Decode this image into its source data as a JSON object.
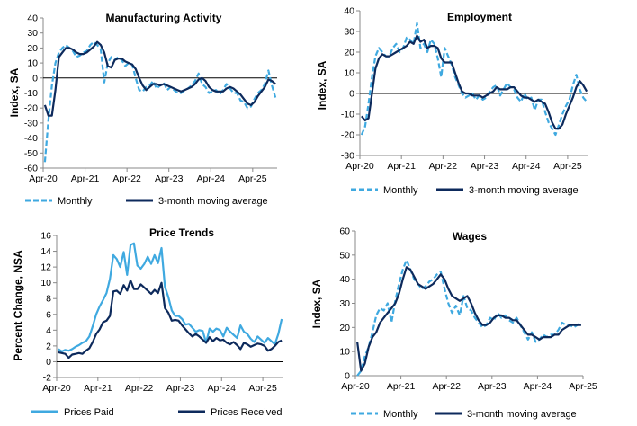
{
  "colors": {
    "light": "#3fa9e0",
    "dark": "#0d2a5c"
  },
  "chart_data": [
    {
      "type": "line",
      "title": "Manufacturing Activity",
      "ylabel": "Index, SA",
      "ylim": [
        -60,
        40
      ],
      "yticks": [
        -60,
        -50,
        -40,
        -30,
        -20,
        -10,
        0,
        10,
        20,
        30,
        40
      ],
      "xticks": [
        "Apr-20",
        "Apr-21",
        "Apr-22",
        "Apr-23",
        "Apr-24",
        "Apr-25"
      ],
      "zero_line": true,
      "series": [
        {
          "name": "Monthly",
          "style": "dashed",
          "color": "#3fa9e0",
          "values": [
            -56,
            -28,
            -5,
            10,
            17,
            20,
            22,
            20,
            18,
            14,
            15,
            17,
            18,
            22,
            24,
            22,
            19,
            -3,
            10,
            14,
            12,
            14,
            12,
            8,
            10,
            9,
            0,
            -8,
            -9,
            -6,
            -5,
            -2,
            -7,
            -5,
            -3,
            -8,
            -6,
            -8,
            -10,
            -10,
            -8,
            -7,
            -5,
            -2,
            3,
            -4,
            -6,
            -10,
            -9,
            -8,
            -11,
            -8,
            -4,
            -7,
            -10,
            -10,
            -15,
            -16,
            -20,
            -19,
            -14,
            -10,
            -8,
            -4,
            5,
            -5,
            -13
          ]
        },
        {
          "name": "3-month moving average",
          "style": "solid",
          "color": "#0d2a5c",
          "values": [
            -18,
            -25,
            -25,
            -8,
            14,
            17,
            20,
            20,
            19,
            17,
            16,
            16,
            17,
            19,
            21,
            24,
            22,
            17,
            8,
            7,
            12,
            13,
            13,
            11,
            10,
            9,
            6,
            0,
            -5,
            -8,
            -6,
            -4,
            -4,
            -5,
            -4,
            -5,
            -6,
            -7,
            -8,
            -9,
            -8,
            -7,
            -6,
            -4,
            -1,
            0,
            -2,
            -6,
            -8,
            -9,
            -9,
            -9,
            -7,
            -6,
            -7,
            -9,
            -11,
            -14,
            -17,
            -18,
            -16,
            -12,
            -9,
            -6,
            -1,
            -2,
            -4
          ]
        }
      ]
    },
    {
      "type": "line",
      "title": "Employment",
      "ylabel": "Index, SA",
      "ylim": [
        -30,
        40
      ],
      "yticks": [
        -30,
        -20,
        -10,
        0,
        10,
        20,
        30,
        40
      ],
      "xticks": [
        "Apr-20",
        "Apr-21",
        "Apr-22",
        "Apr-23",
        "Apr-24",
        "Apr-25"
      ],
      "zero_line": true,
      "series": [
        {
          "name": "Monthly",
          "style": "dashed",
          "color": "#3fa9e0",
          "values": [
            -20,
            -16,
            -5,
            8,
            18,
            22,
            20,
            18,
            18,
            22,
            24,
            20,
            22,
            27,
            26,
            24,
            34,
            22,
            24,
            20,
            26,
            24,
            17,
            8,
            22,
            18,
            14,
            8,
            4,
            0,
            -2,
            -1,
            0,
            -3,
            -1,
            -3,
            -2,
            1,
            3,
            4,
            -1,
            2,
            5,
            3,
            2,
            -2,
            -4,
            0,
            -3,
            -2,
            -8,
            -3,
            -3,
            -9,
            -14,
            -17,
            -20,
            -15,
            -10,
            -6,
            -3,
            4,
            9,
            2,
            -2,
            -4
          ]
        },
        {
          "name": "3-month moving average",
          "style": "solid",
          "color": "#0d2a5c",
          "values": [
            -11,
            -13,
            -12,
            0,
            12,
            17,
            19,
            18,
            18,
            19,
            20,
            21,
            22,
            23,
            25,
            24,
            28,
            25,
            26,
            22,
            23,
            23,
            22,
            17,
            15,
            15,
            15,
            10,
            5,
            1,
            0,
            0,
            -1,
            -1,
            -1,
            -2,
            -1,
            0,
            1,
            3,
            2,
            2,
            2,
            3,
            3,
            1,
            -1,
            -2,
            -2,
            -3,
            -4,
            -3,
            -4,
            -5,
            -9,
            -14,
            -17,
            -17,
            -15,
            -10,
            -6,
            -2,
            3,
            6,
            4,
            1
          ]
        }
      ]
    },
    {
      "type": "line",
      "title": "Price Trends",
      "ylabel": "Percent Change, NSA",
      "ylim": [
        -2,
        16
      ],
      "yticks": [
        -2,
        0,
        2,
        4,
        6,
        8,
        10,
        12,
        14,
        16
      ],
      "xticks": [
        "Apr-20",
        "Apr-21",
        "Apr-22",
        "Apr-23",
        "Apr-24",
        "Apr-25"
      ],
      "zero_line": true,
      "series": [
        {
          "name": "Prices Paid",
          "style": "solid",
          "color": "#3fa9e0",
          "values": [
            1.6,
            1.3,
            1.5,
            1.4,
            1.6,
            1.9,
            2.1,
            2.4,
            2.6,
            3.2,
            4.5,
            6.0,
            7.0,
            7.8,
            8.7,
            10.5,
            13.5,
            13.0,
            12.0,
            13.9,
            11.0,
            14.8,
            15.0,
            12.2,
            11.8,
            12.4,
            13.3,
            12.4,
            13.5,
            12.5,
            14.4,
            9.5,
            8.2,
            6.5,
            5.8,
            5.8,
            5.4,
            4.7,
            4.8,
            4.3,
            3.8,
            4.0,
            3.9,
            2.4,
            4.2,
            3.8,
            4.2,
            4.0,
            3.2,
            4.3,
            3.8,
            3.4,
            3.0,
            4.6,
            3.8,
            3.5,
            2.9,
            2.5,
            3.2,
            2.8,
            2.4,
            3.0,
            2.6,
            2.2,
            3.5,
            5.4
          ]
        },
        {
          "name": "Prices Received",
          "style": "solid",
          "color": "#0d2a5c",
          "values": [
            1.2,
            1.1,
            1.0,
            0.5,
            0.9,
            1.0,
            1.1,
            1.0,
            1.4,
            1.7,
            2.5,
            3.5,
            4.1,
            5.0,
            5.2,
            5.8,
            8.9,
            9.0,
            8.6,
            9.7,
            9.0,
            10.3,
            9.2,
            9.2,
            9.8,
            9.4,
            9.0,
            8.6,
            9.1,
            8.7,
            10.0,
            6.8,
            6.2,
            5.2,
            5.3,
            5.2,
            4.6,
            4.1,
            3.6,
            3.2,
            3.5,
            3.2,
            2.8,
            2.4,
            3.1,
            2.6,
            3.0,
            2.7,
            2.8,
            2.4,
            2.2,
            2.5,
            2.1,
            1.6,
            2.4,
            2.2,
            1.9,
            2.1,
            2.3,
            2.2,
            2.0,
            1.4,
            1.6,
            2.0,
            2.5,
            2.7
          ]
        }
      ]
    },
    {
      "type": "line",
      "title": "Wages",
      "ylabel": "Index, SA",
      "ylim": [
        0,
        60
      ],
      "yticks": [
        0,
        10,
        20,
        30,
        40,
        50,
        60
      ],
      "xticks": [
        "Apr-20",
        "Apr-21",
        "Apr-22",
        "Apr-23",
        "Apr-24",
        "Apr-25"
      ],
      "zero_line": false,
      "series": [
        {
          "name": "Monthly",
          "style": "dashed",
          "color": "#3fa9e0",
          "values": [
            0,
            2,
            8,
            12,
            18,
            25,
            28,
            27,
            30,
            22,
            31,
            38,
            44,
            48,
            44,
            40,
            38,
            36,
            37,
            39,
            40,
            42,
            43,
            36,
            30,
            26,
            29,
            25,
            33,
            28,
            27,
            24,
            22,
            20,
            21,
            24,
            23,
            26,
            24,
            25,
            23,
            22,
            24,
            21,
            18,
            15,
            18,
            14,
            15,
            17,
            16,
            17,
            17,
            19,
            22,
            21,
            21,
            20,
            21,
            22
          ]
        },
        {
          "name": "3-month moving average",
          "style": "solid",
          "color": "#0d2a5c",
          "values": [
            14,
            2,
            5,
            12,
            16,
            18,
            22,
            24,
            26,
            28,
            30,
            34,
            40,
            45,
            44,
            41,
            38,
            37,
            36,
            37,
            38,
            40,
            42,
            40,
            36,
            33,
            32,
            31,
            32,
            33,
            30,
            26,
            23,
            21,
            21,
            22,
            24,
            25,
            25,
            24,
            24,
            23,
            23,
            21,
            19,
            17,
            17,
            16,
            15,
            16,
            16,
            16,
            17,
            17,
            19,
            20,
            21,
            21,
            21,
            21
          ]
        }
      ]
    }
  ]
}
